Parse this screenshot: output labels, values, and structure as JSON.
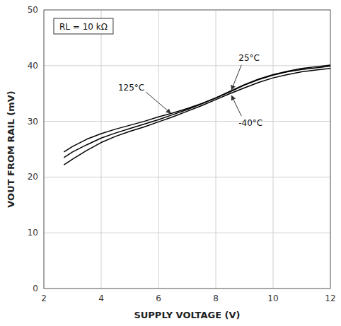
{
  "chart_data": {
    "type": "line",
    "xlabel": "SUPPLY VOLTAGE (V)",
    "ylabel": "VOUT FROM RAIL (mV)",
    "annotations": [
      "RL = 10 kΩ"
    ],
    "x": [
      2.7,
      3.0,
      3.5,
      4.0,
      4.5,
      5.0,
      5.5,
      6.0,
      6.5,
      7.0,
      7.5,
      8.0,
      8.5,
      9.0,
      9.5,
      10.0,
      10.5,
      11.0,
      11.5,
      12.0
    ],
    "series": [
      {
        "name": "25°C",
        "color": "#000000",
        "values": [
          24.5,
          25.5,
          26.8,
          27.8,
          28.6,
          29.3,
          30.0,
          30.8,
          31.5,
          32.3,
          33.2,
          34.2,
          35.3,
          36.5,
          37.5,
          38.3,
          38.9,
          39.3,
          39.6,
          39.9
        ]
      },
      {
        "name": "125°C",
        "color": "#000000",
        "values": [
          23.5,
          24.5,
          25.8,
          27.0,
          27.9,
          28.7,
          29.5,
          30.3,
          31.2,
          32.1,
          33.1,
          34.2,
          35.4,
          36.6,
          37.6,
          38.4,
          39.0,
          39.5,
          39.8,
          40.1
        ]
      },
      {
        "name": "-40°C",
        "color": "#000000",
        "values": [
          22.2,
          23.2,
          24.8,
          26.2,
          27.3,
          28.2,
          29.0,
          29.9,
          30.8,
          31.8,
          32.8,
          33.9,
          35.0,
          36.0,
          37.0,
          37.8,
          38.4,
          38.9,
          39.2,
          39.5
        ]
      }
    ],
    "xlim": [
      2,
      12
    ],
    "ylim": [
      0,
      50
    ],
    "xticks": [
      2,
      4,
      6,
      8,
      10,
      12
    ],
    "yticks": [
      0,
      10,
      20,
      30,
      40,
      50
    ],
    "grid": true
  }
}
